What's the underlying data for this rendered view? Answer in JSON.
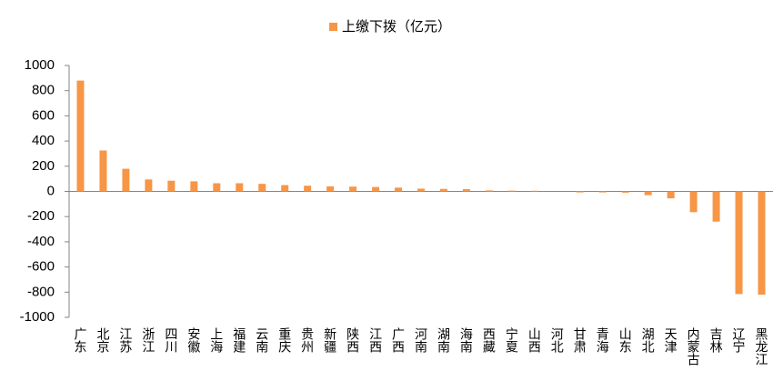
{
  "chart_data": {
    "type": "bar",
    "categories": [
      "广东",
      "北京",
      "江苏",
      "浙江",
      "四川",
      "安徽",
      "上海",
      "福建",
      "云南",
      "重庆",
      "贵州",
      "新疆",
      "陕西",
      "江西",
      "广西",
      "河南",
      "湖南",
      "海南",
      "西藏",
      "宁夏",
      "山西",
      "河北",
      "甘肃",
      "青海",
      "山东",
      "湖北",
      "天津",
      "内蒙古",
      "吉林",
      "辽宁",
      "黑龙江"
    ],
    "series": [
      {
        "name": "上缴下拨（亿元）",
        "color": "#f79646",
        "values": [
          880,
          325,
          180,
          95,
          85,
          80,
          65,
          65,
          60,
          50,
          45,
          40,
          38,
          35,
          30,
          22,
          20,
          18,
          8,
          6,
          5,
          0,
          -8,
          -8,
          -10,
          -30,
          -55,
          -165,
          -240,
          -815,
          -820
        ]
      }
    ],
    "ylim": [
      -1000,
      1000
    ],
    "yticks": [
      -1000,
      -800,
      -600,
      -400,
      -200,
      0,
      200,
      400,
      600,
      800,
      1000
    ],
    "legend": "top"
  }
}
